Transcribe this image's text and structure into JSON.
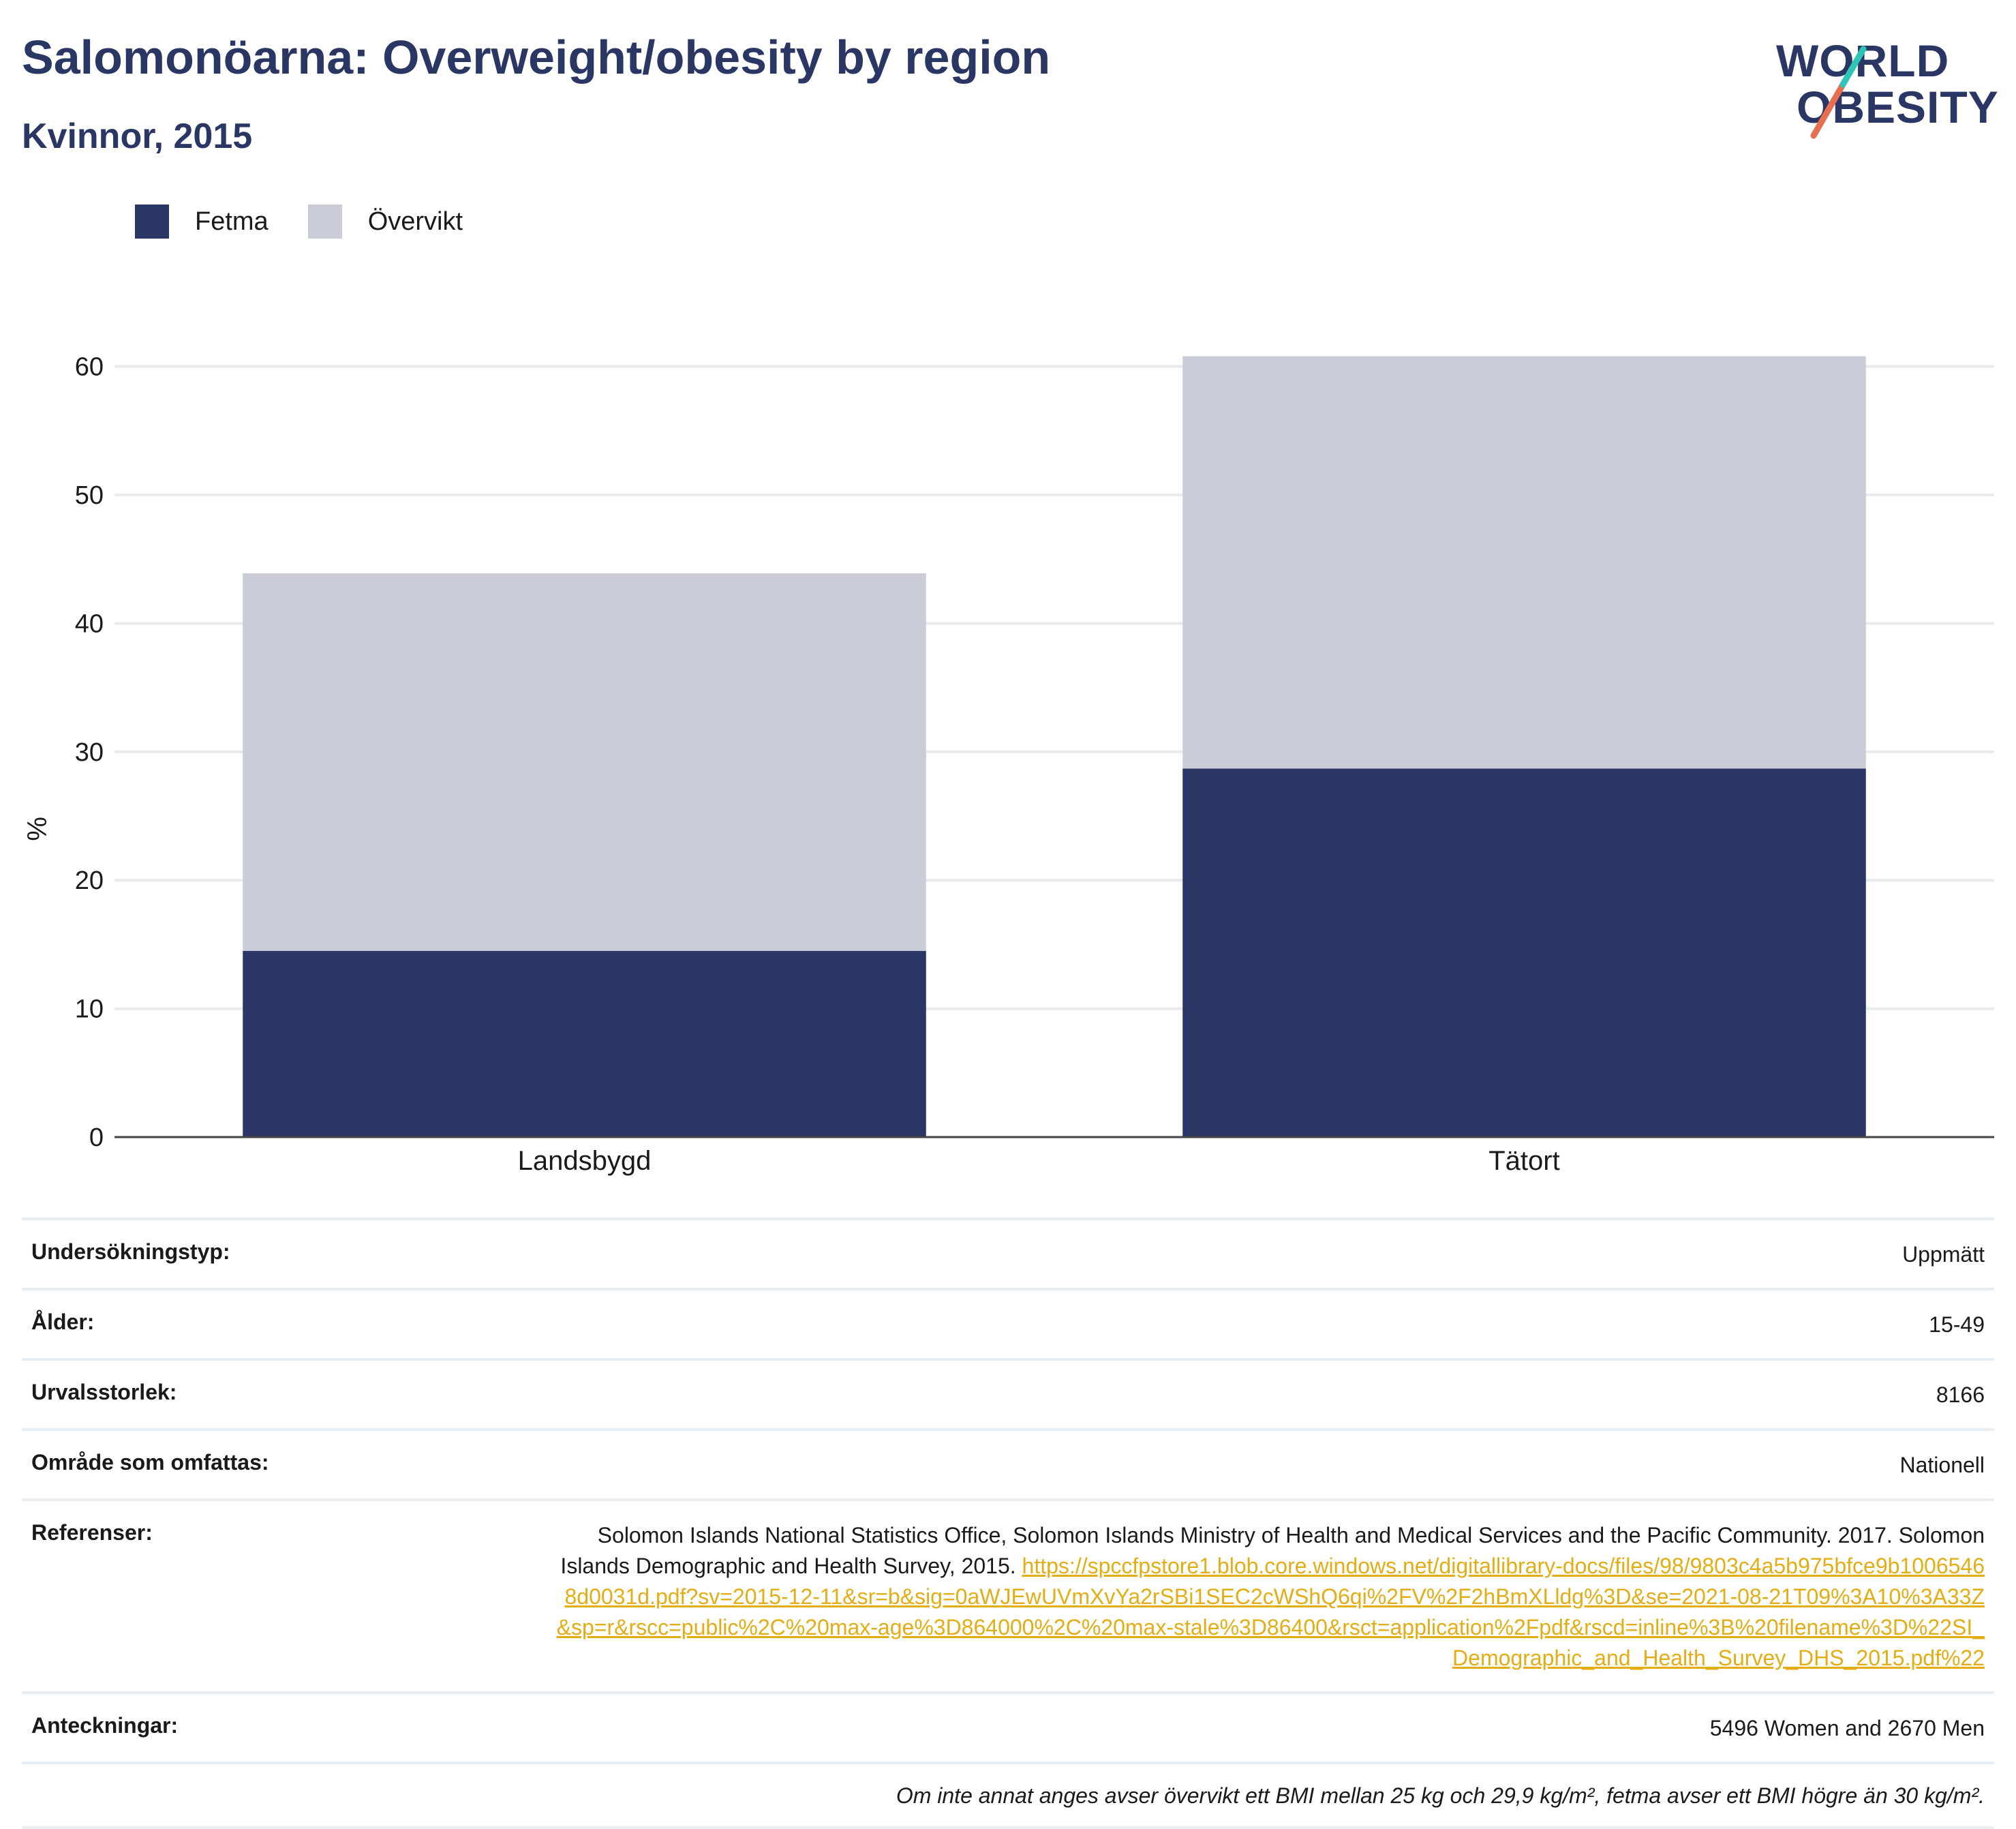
{
  "header": {
    "title": "Salomonöarna: Overweight/obesity by region",
    "subtitle": "Kvinnor, 2015"
  },
  "logo": {
    "line1": "WORLD",
    "line2": "OBESITY",
    "colors": [
      "#2a3663",
      "#e76f51",
      "#2ec4b6"
    ]
  },
  "colors": {
    "fetma": "#2a3663",
    "overvikt": "#caccd8",
    "link": "#e3ad15",
    "text_dark": "#2a3663"
  },
  "chart_data": {
    "type": "bar",
    "stacked": true,
    "categories": [
      "Landsbygd",
      "Tätort"
    ],
    "series": [
      {
        "name": "Fetma",
        "values": [
          14.5,
          28.7
        ]
      },
      {
        "name": "Övervikt",
        "values": [
          29.4,
          32.1
        ]
      }
    ],
    "ylabel": "%",
    "xlabel": "",
    "ylim": [
      0,
      62
    ],
    "yticks": [
      0,
      10,
      20,
      30,
      40,
      50,
      60
    ],
    "grid": true,
    "legend_position": "top-left"
  },
  "legend": [
    {
      "label": "Fetma",
      "color": "#2a3663"
    },
    {
      "label": "Övervikt",
      "color": "#caccd8"
    }
  ],
  "meta": {
    "survey_type_label": "Undersökningstyp:",
    "survey_type_value": "Uppmätt",
    "age_label": "Ålder:",
    "age_value": "15-49",
    "sample_label": "Urvalsstorlek:",
    "sample_value": "8166",
    "area_label": "Område som omfattas:",
    "area_value": "Nationell",
    "refs_label": "Referenser:",
    "refs_text": "Solomon Islands National Statistics Office, Solomon Islands Ministry of Health and Medical Services and the Pacific Community. 2017. Solomon Islands Demographic and Health Survey, 2015.",
    "refs_url": "https://spccfpstore1.blob.core.windows.net/digitallibrary-docs/files/98/9803c4a5b975bfce9b10065468d0031d.pdf?sv=2015-12-11&sr=b&sig=0aWJEwUVmXvYa2rSBi1SEC2cWShQ6qi%2FV%2F2hBmXLldg%3D&se=2021-08-21T09%3A10%3A33Z&sp=r&rscc=public%2C%20max-age%3D864000%2C%20max-stale%3D86400&rsct=application%2Fpdf&rscd=inline%3B%20filename%3D%22SI_Demographic_and_Health_Survey_DHS_2015.pdf%22",
    "notes_label": "Anteckningar:",
    "notes_value": "5496 Women and 2670 Men",
    "footnote": "Om inte annat anges avser övervikt ett BMI mellan 25 kg och 29,9 kg/m², fetma avser ett BMI högre än 30 kg/m²."
  }
}
